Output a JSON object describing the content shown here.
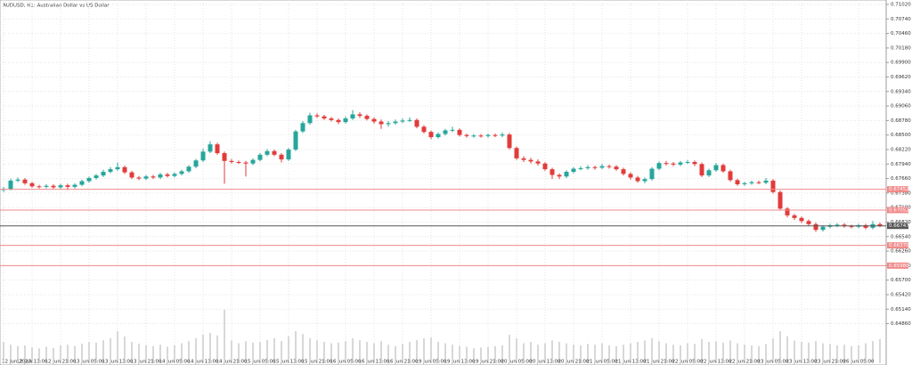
{
  "chart_data": {
    "type": "candlestick",
    "title": "AUDUSD, H1:  Australian Dollar vs US Dollar",
    "up_color": "#26a69a",
    "down_color": "#e23b3b",
    "volume_color": "#b0b0b0",
    "level_color": "#f08a8a",
    "ylim": [
      0.64148,
      0.71106
    ],
    "yticks": [
      {
        "value": 0.7102,
        "label": "0.71020"
      },
      {
        "value": 0.7074,
        "label": "0.70740"
      },
      {
        "value": 0.7046,
        "label": "0.70460"
      },
      {
        "value": 0.7018,
        "label": "0.70180"
      },
      {
        "value": 0.699,
        "label": "0.69900"
      },
      {
        "value": 0.6962,
        "label": "0.69620"
      },
      {
        "value": 0.6934,
        "label": "0.69340"
      },
      {
        "value": 0.6906,
        "label": "0.69060"
      },
      {
        "value": 0.6878,
        "label": "0.68780"
      },
      {
        "value": 0.685,
        "label": "0.68500"
      },
      {
        "value": 0.6822,
        "label": "0.68220"
      },
      {
        "value": 0.6794,
        "label": "0.67940"
      },
      {
        "value": 0.6766,
        "label": "0.67660"
      },
      {
        "value": 0.6738,
        "label": "0.67380"
      },
      {
        "value": 0.671,
        "label": "0.67100"
      },
      {
        "value": 0.6682,
        "label": "0.66820"
      },
      {
        "value": 0.6654,
        "label": "0.66540"
      },
      {
        "value": 0.6626,
        "label": "0.66260"
      },
      {
        "value": 0.6598,
        "label": "0.65980"
      },
      {
        "value": 0.657,
        "label": "0.65700"
      },
      {
        "value": 0.6542,
        "label": "0.65420"
      },
      {
        "value": 0.6514,
        "label": "0.65140"
      },
      {
        "value": 0.6486,
        "label": "0.64860"
      }
    ],
    "grid": true,
    "levels": [
      0.67452,
      0.67052,
      {
        "value": 0.6637,
        "label": "0.66370"
      },
      {
        "value": 0.6598,
        "label": "0.65980"
      }
    ],
    "current_price": 0.66747,
    "x_labels": [
      "12 Jun 2023",
      "12 Jun 13:00",
      "12 Jun 21:00",
      "13 Jun 05:00",
      "13 Jun 13:00",
      "13 Jun 21:00",
      "14 Jun 05:00",
      "14 Jun 13:00",
      "14 Jun 21:00",
      "15 Jun 05:00",
      "15 Jun 13:00",
      "15 Jun 21:00",
      "16 Jun 05:00",
      "16 Jun 13:00",
      "16 Jun 21:00",
      "19 Jun 05:00",
      "19 Jun 13:00",
      "19 Jun 21:00",
      "20 Jun 05:00",
      "20 Jun 13:00",
      "20 Jun 21:00",
      "21 Jun 05:00",
      "21 Jun 13:00",
      "21 Jun 21:00",
      "22 Jun 05:00",
      "22 Jun 13:00",
      "22 Jun 21:00",
      "23 Jun 05:00",
      "23 Jun 13:00",
      "23 Jun 21:00",
      "26 Jun 05:00"
    ],
    "candles": [
      [
        0.6744,
        0.675,
        0.674,
        0.6746
      ],
      [
        0.6746,
        0.6766,
        0.6743,
        0.6762
      ],
      [
        0.6762,
        0.6768,
        0.6759,
        0.6764
      ],
      [
        0.6764,
        0.6767,
        0.6754,
        0.6757
      ],
      [
        0.6757,
        0.676,
        0.6748,
        0.6751
      ],
      [
        0.6751,
        0.6754,
        0.6747,
        0.675
      ],
      [
        0.675,
        0.6755,
        0.6747,
        0.6752
      ],
      [
        0.6752,
        0.6755,
        0.6746,
        0.6749
      ],
      [
        0.6749,
        0.6756,
        0.6746,
        0.6753
      ],
      [
        0.6753,
        0.6756,
        0.6744,
        0.675
      ],
      [
        0.675,
        0.6757,
        0.6747,
        0.6754
      ],
      [
        0.6754,
        0.6764,
        0.6751,
        0.6761
      ],
      [
        0.6761,
        0.677,
        0.6758,
        0.6767
      ],
      [
        0.6767,
        0.6775,
        0.6764,
        0.6772
      ],
      [
        0.6772,
        0.6783,
        0.6769,
        0.6779
      ],
      [
        0.6779,
        0.6788,
        0.6776,
        0.6784
      ],
      [
        0.6784,
        0.6797,
        0.6781,
        0.6788
      ],
      [
        0.6788,
        0.6791,
        0.6775,
        0.6778
      ],
      [
        0.6778,
        0.6781,
        0.6765,
        0.6768
      ],
      [
        0.6768,
        0.6771,
        0.6763,
        0.6766
      ],
      [
        0.6766,
        0.6773,
        0.6763,
        0.677
      ],
      [
        0.677,
        0.6773,
        0.6765,
        0.6768
      ],
      [
        0.6768,
        0.6777,
        0.6765,
        0.6774
      ],
      [
        0.6774,
        0.6777,
        0.6768,
        0.6771
      ],
      [
        0.6771,
        0.6778,
        0.6768,
        0.6775
      ],
      [
        0.6775,
        0.6783,
        0.6772,
        0.678
      ],
      [
        0.678,
        0.6792,
        0.6777,
        0.6789
      ],
      [
        0.6789,
        0.6804,
        0.6786,
        0.6801
      ],
      [
        0.6801,
        0.6824,
        0.6798,
        0.6818
      ],
      [
        0.6818,
        0.6838,
        0.6815,
        0.6832
      ],
      [
        0.6832,
        0.6835,
        0.6812,
        0.6815
      ],
      [
        0.6815,
        0.6818,
        0.6756,
        0.68
      ],
      [
        0.68,
        0.6804,
        0.6795,
        0.6798
      ],
      [
        0.6798,
        0.6801,
        0.6794,
        0.6797
      ],
      [
        0.6797,
        0.68,
        0.677,
        0.6795
      ],
      [
        0.6795,
        0.6805,
        0.6792,
        0.6802
      ],
      [
        0.6802,
        0.6815,
        0.6799,
        0.6812
      ],
      [
        0.6812,
        0.6823,
        0.6809,
        0.6819
      ],
      [
        0.6819,
        0.6822,
        0.6809,
        0.6812
      ],
      [
        0.6812,
        0.6815,
        0.6797,
        0.6803
      ],
      [
        0.6803,
        0.6825,
        0.68,
        0.6822
      ],
      [
        0.6822,
        0.686,
        0.6819,
        0.6857
      ],
      [
        0.6857,
        0.6877,
        0.6854,
        0.6873
      ],
      [
        0.6873,
        0.6893,
        0.687,
        0.6888
      ],
      [
        0.6888,
        0.6892,
        0.6883,
        0.6886
      ],
      [
        0.6886,
        0.6889,
        0.6879,
        0.6882
      ],
      [
        0.6882,
        0.6885,
        0.6876,
        0.6879
      ],
      [
        0.6879,
        0.6882,
        0.6871,
        0.6875
      ],
      [
        0.6875,
        0.6886,
        0.6872,
        0.6882
      ],
      [
        0.6882,
        0.6898,
        0.6879,
        0.689
      ],
      [
        0.689,
        0.6894,
        0.6883,
        0.6887
      ],
      [
        0.6887,
        0.689,
        0.6878,
        0.6881
      ],
      [
        0.6881,
        0.6884,
        0.6872,
        0.6876
      ],
      [
        0.6876,
        0.688,
        0.6862,
        0.6871
      ],
      [
        0.6871,
        0.6877,
        0.6866,
        0.6873
      ],
      [
        0.6873,
        0.688,
        0.687,
        0.6876
      ],
      [
        0.6876,
        0.6882,
        0.6873,
        0.6878
      ],
      [
        0.6878,
        0.6884,
        0.6875,
        0.6879
      ],
      [
        0.6879,
        0.6882,
        0.6863,
        0.6866
      ],
      [
        0.6866,
        0.6869,
        0.6853,
        0.6856
      ],
      [
        0.6856,
        0.6859,
        0.6842,
        0.6846
      ],
      [
        0.6846,
        0.6855,
        0.6843,
        0.6852
      ],
      [
        0.6852,
        0.6862,
        0.6849,
        0.6859
      ],
      [
        0.6859,
        0.6866,
        0.6856,
        0.686
      ],
      [
        0.686,
        0.6863,
        0.6847,
        0.685
      ],
      [
        0.685,
        0.6853,
        0.6845,
        0.6848
      ],
      [
        0.6848,
        0.6852,
        0.6845,
        0.6849
      ],
      [
        0.6849,
        0.6852,
        0.6845,
        0.6848
      ],
      [
        0.6848,
        0.6853,
        0.6845,
        0.685
      ],
      [
        0.685,
        0.6853,
        0.6846,
        0.6849
      ],
      [
        0.6849,
        0.6855,
        0.6846,
        0.6851
      ],
      [
        0.6851,
        0.6854,
        0.6822,
        0.6825
      ],
      [
        0.6825,
        0.6828,
        0.6802,
        0.6805
      ],
      [
        0.6805,
        0.6809,
        0.6798,
        0.6802
      ],
      [
        0.6802,
        0.6806,
        0.6795,
        0.6799
      ],
      [
        0.6799,
        0.6803,
        0.6791,
        0.6795
      ],
      [
        0.6795,
        0.6798,
        0.6781,
        0.6784
      ],
      [
        0.6784,
        0.6787,
        0.6765,
        0.6773
      ],
      [
        0.6773,
        0.6776,
        0.6765,
        0.677
      ],
      [
        0.677,
        0.6782,
        0.6767,
        0.6779
      ],
      [
        0.6779,
        0.6788,
        0.6776,
        0.6785
      ],
      [
        0.6785,
        0.679,
        0.6782,
        0.6786
      ],
      [
        0.6786,
        0.6792,
        0.6783,
        0.6788
      ],
      [
        0.6788,
        0.6791,
        0.6783,
        0.6787
      ],
      [
        0.6787,
        0.6794,
        0.6784,
        0.679
      ],
      [
        0.679,
        0.6793,
        0.6785,
        0.6789
      ],
      [
        0.6789,
        0.6792,
        0.6781,
        0.6784
      ],
      [
        0.6784,
        0.6787,
        0.6772,
        0.6775
      ],
      [
        0.6775,
        0.6778,
        0.6764,
        0.6768
      ],
      [
        0.6768,
        0.6771,
        0.6758,
        0.6761
      ],
      [
        0.6761,
        0.6768,
        0.6757,
        0.6765
      ],
      [
        0.6765,
        0.6788,
        0.6762,
        0.6785
      ],
      [
        0.6785,
        0.6799,
        0.6782,
        0.6796
      ],
      [
        0.6796,
        0.68,
        0.6791,
        0.6795
      ],
      [
        0.6795,
        0.6798,
        0.679,
        0.6793
      ],
      [
        0.6793,
        0.68,
        0.679,
        0.6797
      ],
      [
        0.6797,
        0.6802,
        0.6794,
        0.6798
      ],
      [
        0.6798,
        0.6801,
        0.679,
        0.6794
      ],
      [
        0.6794,
        0.6797,
        0.6769,
        0.6772
      ],
      [
        0.6772,
        0.6785,
        0.6769,
        0.6782
      ],
      [
        0.6782,
        0.6796,
        0.6779,
        0.6792
      ],
      [
        0.6792,
        0.6795,
        0.6777,
        0.678
      ],
      [
        0.678,
        0.6783,
        0.676,
        0.6763
      ],
      [
        0.6763,
        0.6766,
        0.6752,
        0.6755
      ],
      [
        0.6755,
        0.676,
        0.6752,
        0.6757
      ],
      [
        0.6757,
        0.6762,
        0.6754,
        0.6759
      ],
      [
        0.6759,
        0.6762,
        0.6755,
        0.6758
      ],
      [
        0.6758,
        0.6767,
        0.6755,
        0.6762
      ],
      [
        0.6762,
        0.6765,
        0.6737,
        0.674
      ],
      [
        0.674,
        0.6743,
        0.6704,
        0.6708
      ],
      [
        0.6708,
        0.6711,
        0.6691,
        0.6695
      ],
      [
        0.6695,
        0.6698,
        0.6686,
        0.669
      ],
      [
        0.669,
        0.6693,
        0.668,
        0.6684
      ],
      [
        0.6684,
        0.6687,
        0.6674,
        0.6678
      ],
      [
        0.6678,
        0.6681,
        0.6663,
        0.6667
      ],
      [
        0.6667,
        0.6676,
        0.6664,
        0.6673
      ],
      [
        0.6673,
        0.6679,
        0.667,
        0.6676
      ],
      [
        0.6676,
        0.668,
        0.6672,
        0.6677
      ],
      [
        0.6677,
        0.668,
        0.6671,
        0.6674
      ],
      [
        0.6674,
        0.6677,
        0.667,
        0.6673
      ],
      [
        0.6673,
        0.6679,
        0.667,
        0.6676
      ],
      [
        0.6676,
        0.6679,
        0.6668,
        0.6671
      ],
      [
        0.6671,
        0.6684,
        0.6668,
        0.6678
      ],
      [
        0.6678,
        0.6681,
        0.6672,
        0.66747
      ]
    ],
    "volume": [
      600,
      520,
      480,
      500,
      450,
      420,
      460,
      430,
      500,
      520,
      480,
      550,
      600,
      580,
      650,
      700,
      900,
      750,
      600,
      550,
      500,
      480,
      520,
      460,
      500,
      560,
      620,
      700,
      800,
      850,
      780,
      1500,
      640,
      560,
      620,
      580,
      600,
      650,
      700,
      620,
      760,
      900,
      820,
      700,
      640,
      600,
      560,
      580,
      620,
      700,
      650,
      600,
      560,
      620,
      520,
      480,
      540,
      600,
      650,
      700,
      720,
      600,
      560,
      520,
      480,
      460,
      420,
      440,
      460,
      480,
      500,
      800,
      700,
      560,
      600,
      520,
      560,
      640,
      600,
      560,
      520,
      500,
      540,
      520,
      560,
      500,
      480,
      520,
      560,
      600,
      640,
      700,
      620,
      560,
      520,
      500,
      560,
      540,
      680,
      600,
      620,
      580,
      640,
      560,
      520,
      500,
      480,
      540,
      700,
      900,
      760,
      640,
      600,
      580,
      620,
      560,
      540,
      500,
      520,
      480,
      500,
      560,
      620,
      680
    ]
  }
}
